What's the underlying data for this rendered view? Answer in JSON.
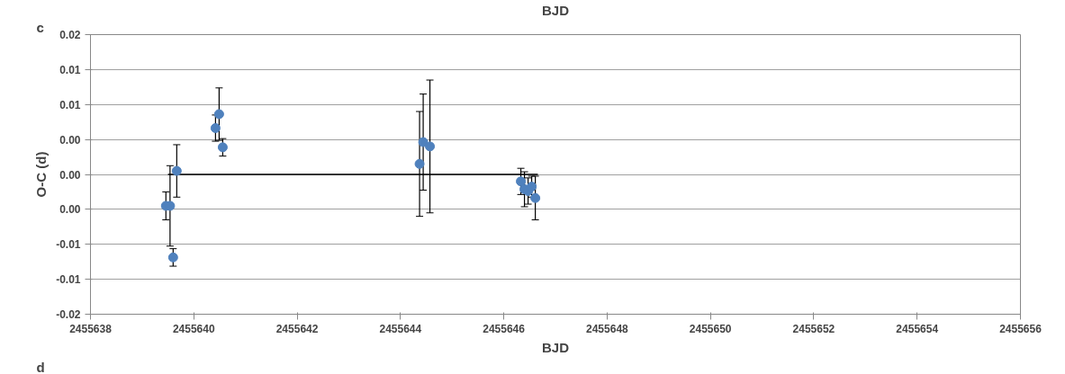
{
  "chart_data": {
    "type": "scatter",
    "xlabel": "BJD",
    "ylabel": "O-C (d)",
    "annotations": [
      "c",
      "BJD",
      "d"
    ],
    "xlim": [
      2455638,
      2455656
    ],
    "xticks": [
      2455638,
      2455640,
      2455642,
      2455644,
      2455646,
      2455648,
      2455650,
      2455652,
      2455654,
      2455656
    ],
    "ylim": [
      -0.016,
      0.016
    ],
    "yticks": [
      {
        "value": -0.016,
        "label": "-0.02"
      },
      {
        "value": -0.012,
        "label": "-0.01"
      },
      {
        "value": -0.008,
        "label": "-0.01"
      },
      {
        "value": -0.004,
        "label": "0.00"
      },
      {
        "value": 0,
        "label": "0.00"
      },
      {
        "value": 0.004,
        "label": "0.00"
      },
      {
        "value": 0.008,
        "label": "0.01"
      },
      {
        "value": 0.012,
        "label": "0.01"
      },
      {
        "value": 0.016,
        "label": "0.02"
      }
    ],
    "grid": "y",
    "marker": "circle",
    "series": [
      {
        "type": "line",
        "marker": "none",
        "color": "#000000",
        "x": [
          2455639.5,
          2455646.66
        ],
        "values": [
          0,
          0
        ]
      },
      {
        "color": "#4f81bd",
        "x": [
          2455639.46,
          2455639.54,
          2455639.6,
          2455639.67,
          2455640.42,
          2455640.49,
          2455640.56,
          2455644.37,
          2455644.44,
          2455644.57,
          2455646.33,
          2455646.4,
          2455646.47,
          2455646.54,
          2455646.61
        ],
        "values": [
          -0.0036,
          -0.0036,
          -0.0095,
          0.0004,
          0.0053,
          0.0069,
          0.0031,
          0.0012,
          0.0037,
          0.0032,
          -0.0008,
          -0.0017,
          -0.0019,
          -0.0014,
          -0.0027
        ],
        "errors": [
          0.0016,
          0.0046,
          0.001,
          0.003,
          0.0015,
          0.003,
          0.001,
          0.006,
          0.0055,
          0.0076,
          0.0015,
          0.002,
          0.0015,
          0.0012,
          0.0025
        ]
      }
    ]
  }
}
